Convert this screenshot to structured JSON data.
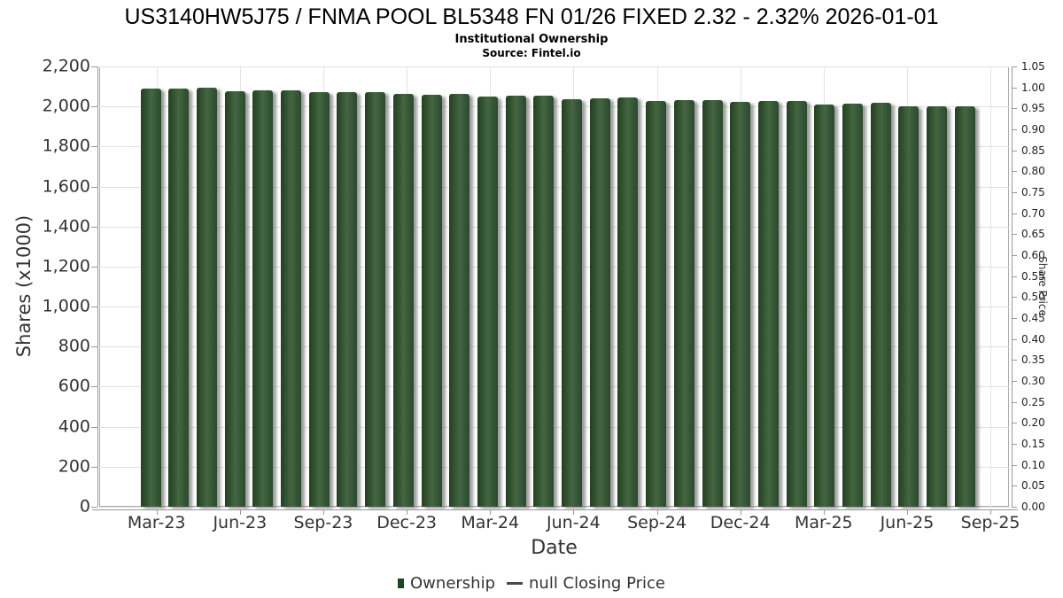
{
  "header": {
    "title": "US3140HW5J75 / FNMA POOL BL5348 FN 01/26 FIXED 2.32 - 2.32% 2026-01-01",
    "subtitle": "Institutional Ownership",
    "source": "Source: Fintel.io"
  },
  "chart_data": {
    "type": "bar",
    "title": "US3140HW5J75 / FNMA POOL BL5348 FN 01/26 FIXED 2.32 - 2.32% 2026-01-01",
    "subtitle": "Institutional Ownership",
    "source": "Source: Fintel.io",
    "xlabel": "Date",
    "ylabel": "Shares (x1000)",
    "ylabel_right": "Share Price",
    "series_name": "Ownership",
    "categories": [
      "Mar-23",
      "Apr-23",
      "May-23",
      "Jun-23",
      "Jul-23",
      "Aug-23",
      "Sep-23",
      "Oct-23",
      "Nov-23",
      "Dec-23",
      "Jan-24",
      "Feb-24",
      "Mar-24",
      "Apr-24",
      "May-24",
      "Jun-24",
      "Jul-24",
      "Aug-24",
      "Sep-24",
      "Oct-24",
      "Nov-24",
      "Dec-24",
      "Jan-25",
      "Feb-25",
      "Mar-25",
      "Apr-25",
      "May-25",
      "Jun-25",
      "Jul-25",
      "Aug-25"
    ],
    "values": [
      2090,
      2091,
      2093,
      2076,
      2079,
      2082,
      2070,
      2073,
      2070,
      2061,
      2058,
      2061,
      2049,
      2052,
      2055,
      2037,
      2040,
      2046,
      2029,
      2031,
      2034,
      2023,
      2026,
      2029,
      2011,
      2014,
      2017,
      1999,
      2002,
      2003
    ],
    "x_tick_labels": [
      "Mar-23",
      "Jun-23",
      "Sep-23",
      "Dec-23",
      "Mar-24",
      "Jun-24",
      "Sep-24",
      "Dec-24",
      "Mar-25",
      "Jun-25",
      "Sep-25"
    ],
    "y_left_ticks": [
      0,
      200,
      400,
      600,
      800,
      1000,
      1200,
      1400,
      1600,
      1800,
      2000,
      2200
    ],
    "y_right_tick_labels": [
      "0.00",
      "0.05",
      "0.10",
      "0.15",
      "0.20",
      "0.25",
      "0.30",
      "0.35",
      "0.40",
      "0.45",
      "0.50",
      "0.55",
      "0.60",
      "0.65",
      "0.70",
      "0.75",
      "0.80",
      "0.85",
      "0.90",
      "0.95",
      "1.00",
      "1.05"
    ],
    "ylim": [
      0,
      2200
    ],
    "ylim_right": [
      0,
      1.05
    ],
    "grid": true,
    "legend_position": "bottom",
    "legend": [
      {
        "label": "Ownership",
        "marker": "square"
      },
      {
        "label": "null Closing Price",
        "marker": "line"
      }
    ]
  },
  "colors": {
    "bar_green_mid": "#44663f",
    "bar_green_edge": "#24411f",
    "legend_square_green": "#1d4722",
    "bar_shadow_gray": "#9a9a9a",
    "gridline_gray": "#e0e0e0",
    "axis_gray": "#999999",
    "plot_border_gray": "#ababab",
    "tick_text": "#333333"
  }
}
